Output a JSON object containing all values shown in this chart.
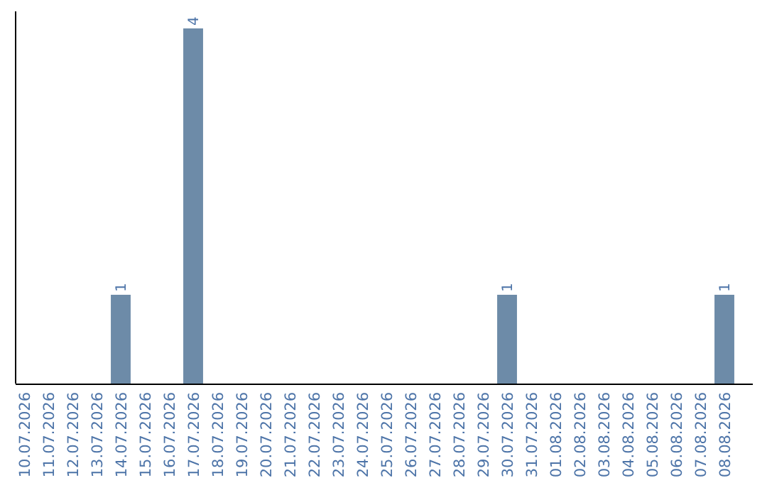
{
  "chart_data": {
    "type": "bar",
    "categories": [
      "10.07.2026",
      "11.07.2026",
      "12.07.2026",
      "13.07.2026",
      "14.07.2026",
      "15.07.2026",
      "16.07.2026",
      "17.07.2026",
      "18.07.2026",
      "19.07.2026",
      "20.07.2026",
      "21.07.2026",
      "22.07.2026",
      "23.07.2026",
      "24.07.2026",
      "25.07.2026",
      "26.07.2026",
      "27.07.2026",
      "28.07.2026",
      "29.07.2026",
      "30.07.2026",
      "31.07.2026",
      "01.08.2026",
      "02.08.2026",
      "03.08.2026",
      "04.08.2026",
      "05.08.2026",
      "06.08.2026",
      "07.08.2026",
      "08.08.2026"
    ],
    "values": [
      0,
      0,
      0,
      0,
      1,
      0,
      0,
      4,
      0,
      0,
      0,
      0,
      0,
      0,
      0,
      0,
      0,
      0,
      0,
      0,
      1,
      0,
      0,
      0,
      0,
      0,
      0,
      0,
      0,
      1
    ],
    "color": "#6d8ba8",
    "value_labels": [
      null,
      null,
      null,
      null,
      "1",
      null,
      null,
      "4",
      null,
      null,
      null,
      null,
      null,
      null,
      null,
      null,
      null,
      null,
      null,
      null,
      "1",
      null,
      null,
      null,
      null,
      null,
      null,
      null,
      null,
      "1"
    ],
    "tick_labels": "x"
  }
}
